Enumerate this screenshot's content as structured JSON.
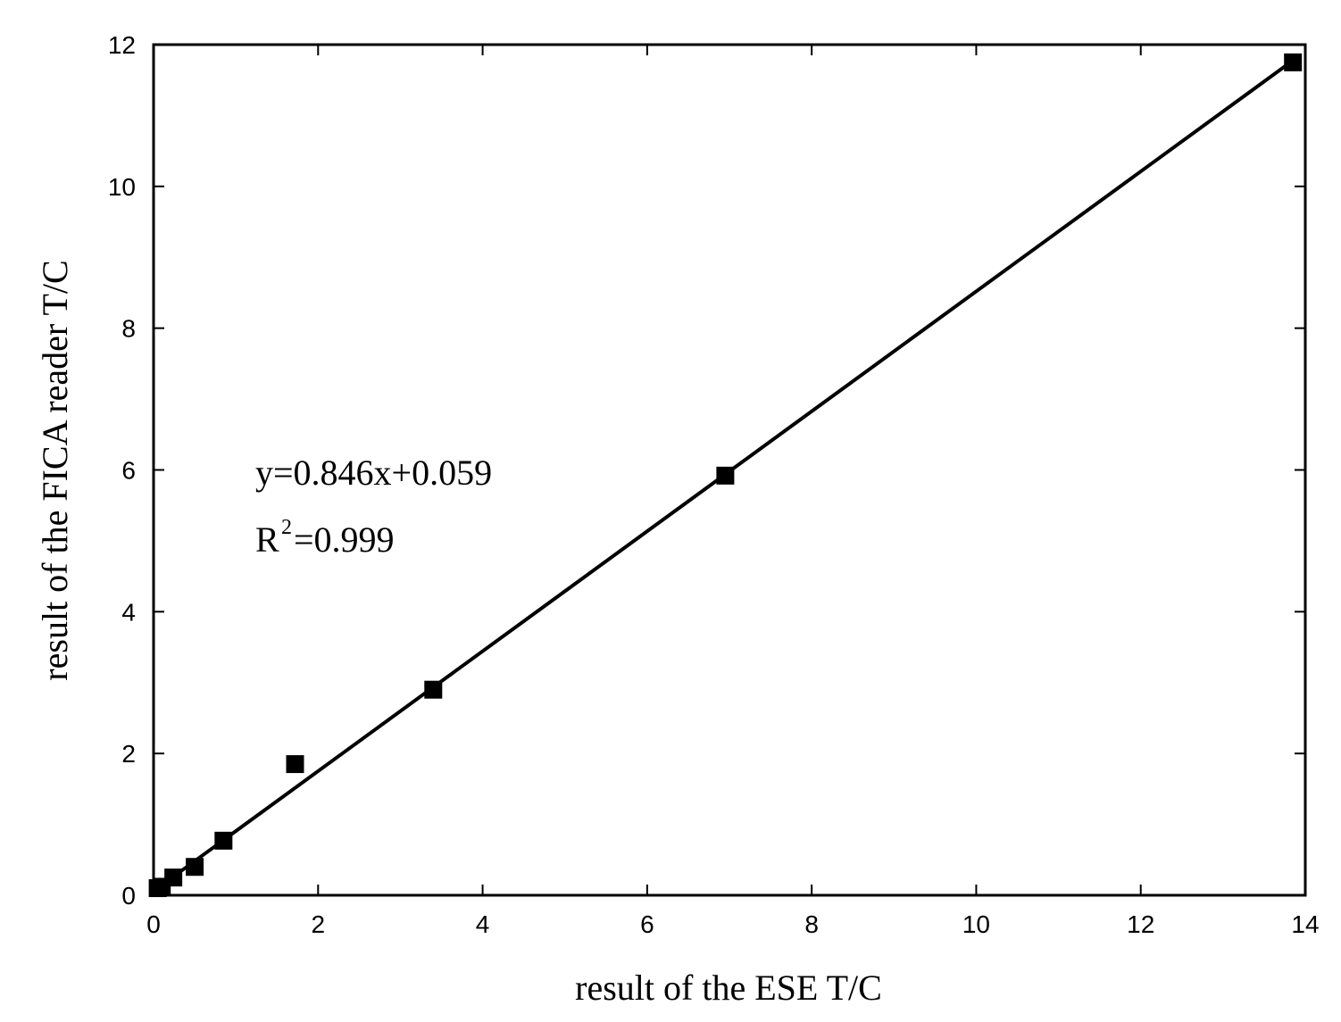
{
  "chart_data": {
    "type": "scatter",
    "title": "",
    "xlabel": "result of the ESE T/C",
    "ylabel": "result of the FICA reader T/C",
    "xlim": [
      0,
      14
    ],
    "ylim": [
      0,
      12
    ],
    "xticks": [
      0,
      2,
      4,
      6,
      8,
      10,
      12,
      14
    ],
    "yticks": [
      0,
      2,
      4,
      6,
      8,
      10,
      12
    ],
    "xtick_labels": [
      "0",
      "2",
      "4",
      "6",
      "8",
      "10",
      "12",
      "14"
    ],
    "ytick_labels": [
      "0",
      "2",
      "4",
      "6",
      "8",
      "10",
      "12"
    ],
    "grid": false,
    "series": [
      {
        "marker": "square",
        "x": [
          0.05,
          0.1,
          0.24,
          0.5,
          0.85,
          1.72,
          3.4,
          6.95,
          13.85
        ],
        "y": [
          0.1,
          0.12,
          0.25,
          0.4,
          0.77,
          1.85,
          2.9,
          5.92,
          11.75
        ]
      }
    ],
    "fit_line": {
      "slope": 0.846,
      "intercept": 0.059,
      "x_range": [
        0,
        13.85
      ]
    },
    "annotations": {
      "equation": "y=0.846x+0.059",
      "r2_prefix": "R",
      "r2_superscript": "2",
      "r2_value": "=0.999"
    },
    "colors": {
      "axis": "#000000",
      "marker": "#000000",
      "line": "#000000"
    }
  }
}
